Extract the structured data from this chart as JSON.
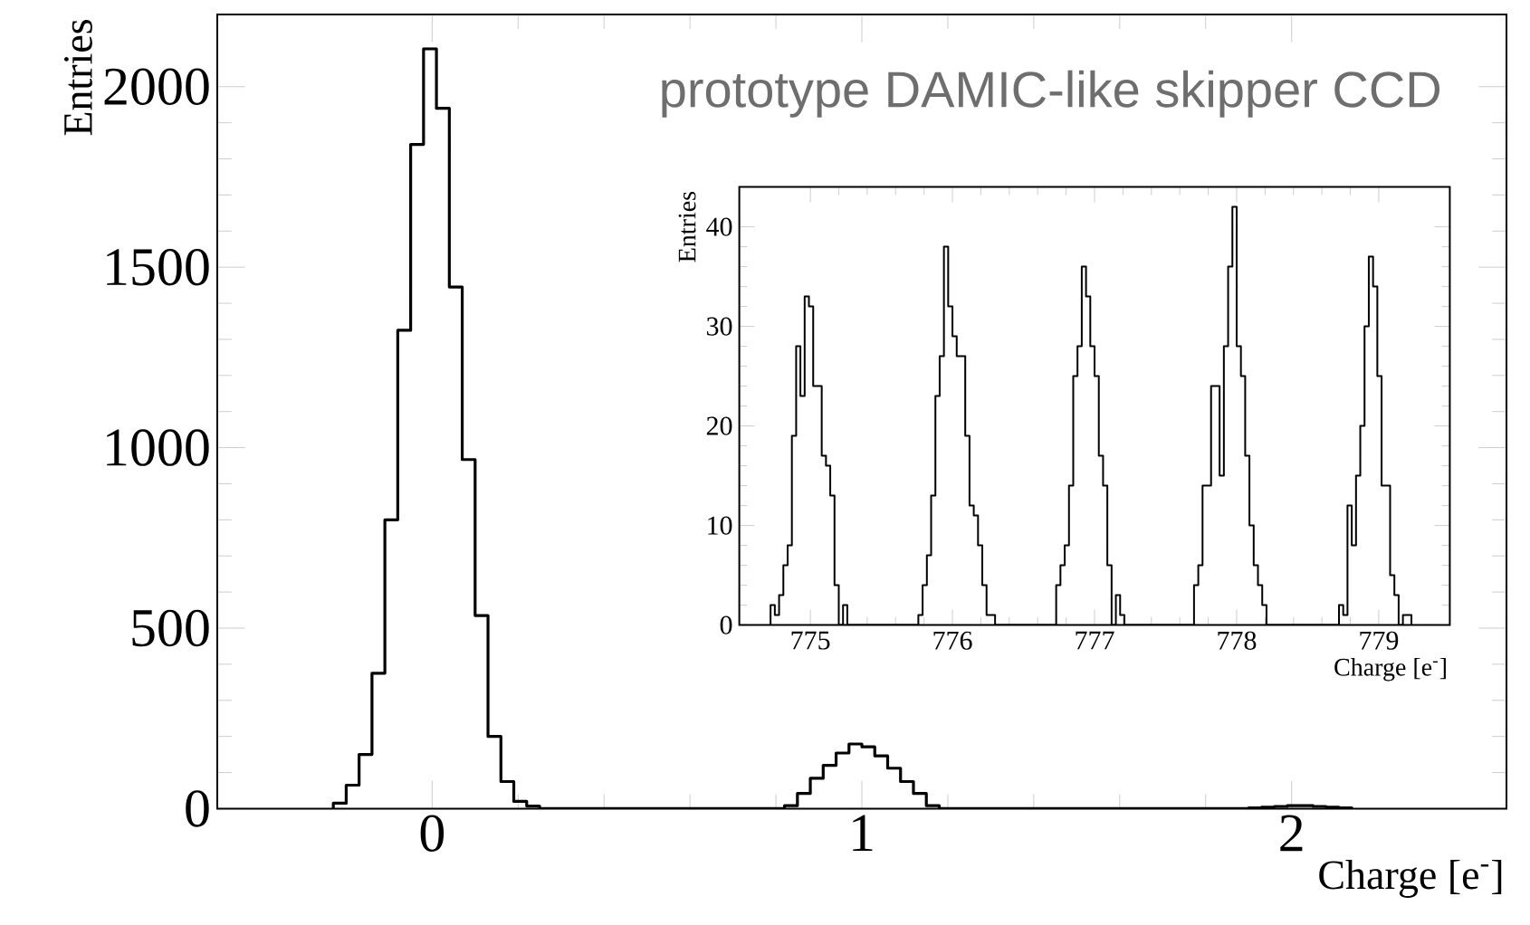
{
  "chart_data": [
    {
      "type": "histogram",
      "xlabel": "Charge [e$^{-}$]",
      "ylabel": "Entries",
      "color": "#000000",
      "annotations": [
        "prototype DAMIC-like skipper CCD"
      ],
      "bins": [
        -0.23,
        -0.2,
        -0.17,
        -0.14,
        -0.11,
        -0.08,
        -0.05,
        -0.02,
        0.01,
        0.04,
        0.07,
        0.1,
        0.13,
        0.16,
        0.19,
        0.22,
        0.25,
        0.82,
        0.85,
        0.88,
        0.91,
        0.94,
        0.97,
        1.0,
        1.03,
        1.06,
        1.09,
        1.12,
        1.15,
        1.18,
        1.9,
        1.93,
        1.96,
        1.99,
        2.02,
        2.05,
        2.08,
        2.11,
        2.14
      ],
      "values": [
        15,
        65,
        150,
        375,
        800,
        1325,
        1840,
        2105,
        1940,
        1445,
        967,
        535,
        200,
        75,
        20,
        7,
        0,
        8,
        42,
        84,
        120,
        154,
        179,
        171,
        146,
        112,
        75,
        42,
        8,
        0,
        2,
        4,
        6,
        8,
        8,
        6,
        4,
        2
      ],
      "xlim": [
        -0.5,
        2.5
      ],
      "ylim": [
        0,
        2200
      ],
      "xticks": [
        0,
        1,
        2
      ],
      "yticks": [
        0,
        500,
        1000,
        1500,
        2000
      ]
    },
    {
      "type": "histogram",
      "xlabel": "Charge [e$^{-}$]",
      "ylabel": "Entries",
      "color": "#000000",
      "bins": [
        774.72,
        774.75,
        774.78,
        774.81,
        774.84,
        774.87,
        774.9,
        774.93,
        774.96,
        774.99,
        775.02,
        775.05,
        775.08,
        775.11,
        775.14,
        775.17,
        775.2,
        775.23,
        775.26,
        775.76,
        775.79,
        775.82,
        775.85,
        775.88,
        775.91,
        775.94,
        775.97,
        776.0,
        776.03,
        776.06,
        776.09,
        776.12,
        776.15,
        776.18,
        776.21,
        776.24,
        776.27,
        776.3,
        776.73,
        776.76,
        776.79,
        776.82,
        776.85,
        776.88,
        776.91,
        776.94,
        776.97,
        777.0,
        777.03,
        777.06,
        777.09,
        777.12,
        777.15,
        777.18,
        777.21,
        777.7,
        777.73,
        777.76,
        777.79,
        777.82,
        777.85,
        777.88,
        777.91,
        777.94,
        777.97,
        778.0,
        778.03,
        778.06,
        778.09,
        778.12,
        778.15,
        778.18,
        778.21,
        778.72,
        778.75,
        778.78,
        778.81,
        778.84,
        778.87,
        778.9,
        778.93,
        778.96,
        778.99,
        779.02,
        779.05,
        779.08,
        779.11,
        779.14,
        779.17,
        779.2,
        779.23
      ],
      "values": [
        2,
        1,
        3,
        6,
        8,
        19,
        28,
        23,
        33,
        32,
        24,
        24,
        17,
        16,
        13,
        4,
        0,
        2,
        0,
        1,
        4,
        7,
        13,
        23,
        27,
        38,
        32,
        29,
        27,
        27,
        19,
        12,
        11,
        8,
        4,
        1,
        1,
        0,
        4,
        6,
        8,
        14,
        25,
        28,
        36,
        33,
        28,
        25,
        17,
        14,
        6,
        0,
        3,
        1,
        0,
        4,
        6,
        14,
        14,
        24,
        24,
        15,
        28,
        36,
        42,
        28,
        25,
        17,
        10,
        6,
        4,
        2,
        0,
        2,
        1,
        12,
        8,
        15,
        20,
        30,
        37,
        34,
        25,
        14,
        14,
        5,
        3,
        0,
        1,
        1
      ],
      "xlim": [
        774.5,
        779.5
      ],
      "ylim": [
        0,
        44
      ],
      "xticks": [
        775,
        776,
        777,
        778,
        779
      ],
      "yticks": [
        0,
        10,
        20,
        30,
        40
      ]
    }
  ]
}
